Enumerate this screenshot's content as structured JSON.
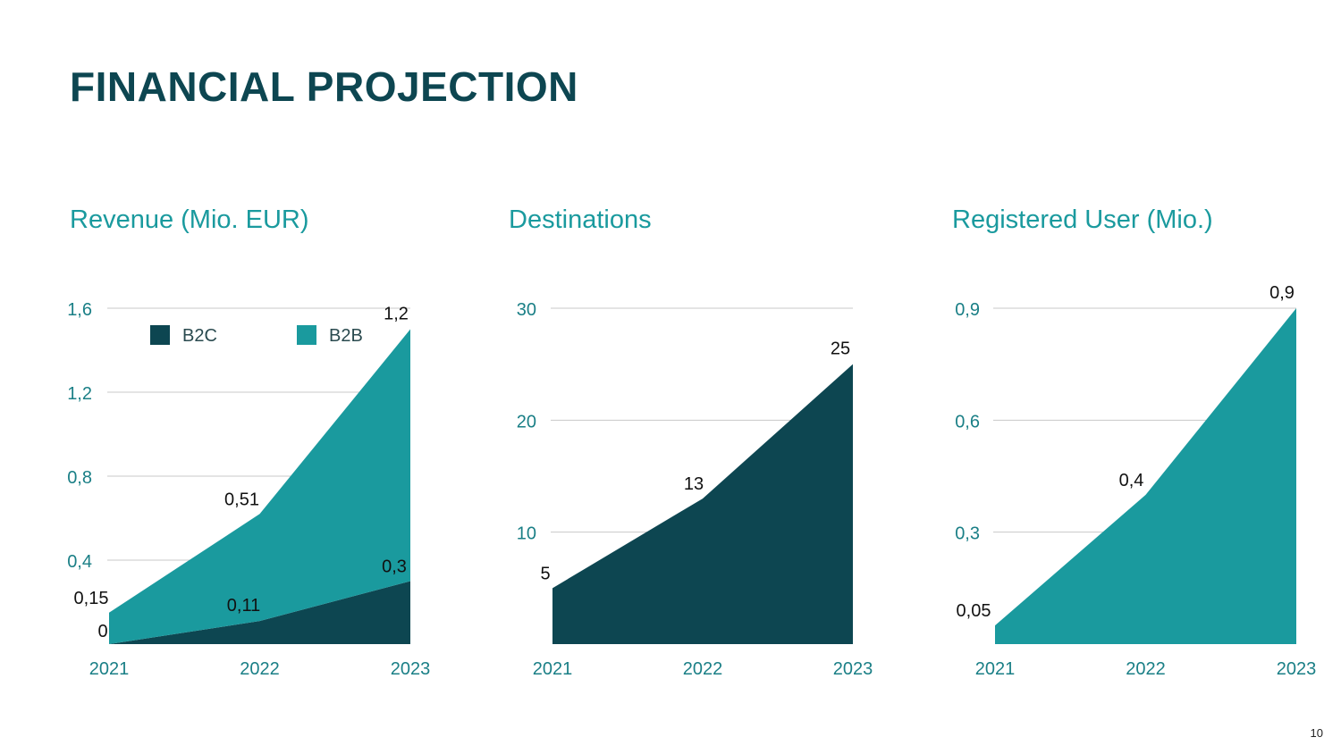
{
  "page_title": "FINANCIAL PROJECTION",
  "page_number": "10",
  "colors": {
    "dark": "#0d4651",
    "teal": "#1a9a9e",
    "axis_text": "#1a7f86",
    "grid": "#c8c8c8",
    "label": "#111111"
  },
  "chart_data": [
    {
      "type": "area",
      "stacked": true,
      "title": "Revenue (Mio. EUR)",
      "categories": [
        "2021",
        "2022",
        "2023"
      ],
      "ylim": [
        0,
        1.6
      ],
      "yticks": [
        0.4,
        0.8,
        1.2,
        1.6
      ],
      "ytick_labels": [
        "0,4",
        "0,8",
        "1,2",
        "1,6"
      ],
      "grid": true,
      "legend": "top",
      "series": [
        {
          "name": "B2C",
          "color": "#0d4651",
          "values": [
            0,
            0.11,
            0.3
          ],
          "labels": [
            "0",
            "0,11",
            "0,3"
          ]
        },
        {
          "name": "B2B",
          "color": "#1a9a9e",
          "values": [
            0.15,
            0.51,
            1.2
          ],
          "labels": [
            "0,15",
            "0,51",
            "1,2"
          ]
        }
      ]
    },
    {
      "type": "area",
      "title": "Destinations",
      "categories": [
        "2021",
        "2022",
        "2023"
      ],
      "ylim": [
        0,
        30
      ],
      "yticks": [
        10,
        20,
        30
      ],
      "ytick_labels": [
        "10",
        "20",
        "30"
      ],
      "grid": true,
      "series": [
        {
          "color": "#0d4651",
          "values": [
            5,
            13,
            25
          ],
          "labels": [
            "5",
            "13",
            "25"
          ]
        }
      ]
    },
    {
      "type": "area",
      "title": "Registered User (Mio.)",
      "categories": [
        "2021",
        "2022",
        "2023"
      ],
      "ylim": [
        0,
        0.9
      ],
      "yticks": [
        0.3,
        0.6,
        0.9
      ],
      "ytick_labels": [
        "0,3",
        "0,6",
        "0,9"
      ],
      "grid": true,
      "series": [
        {
          "color": "#1a9a9e",
          "values": [
            0.05,
            0.4,
            0.9
          ],
          "labels": [
            "0,05",
            "0,4",
            "0,9"
          ]
        }
      ]
    }
  ]
}
